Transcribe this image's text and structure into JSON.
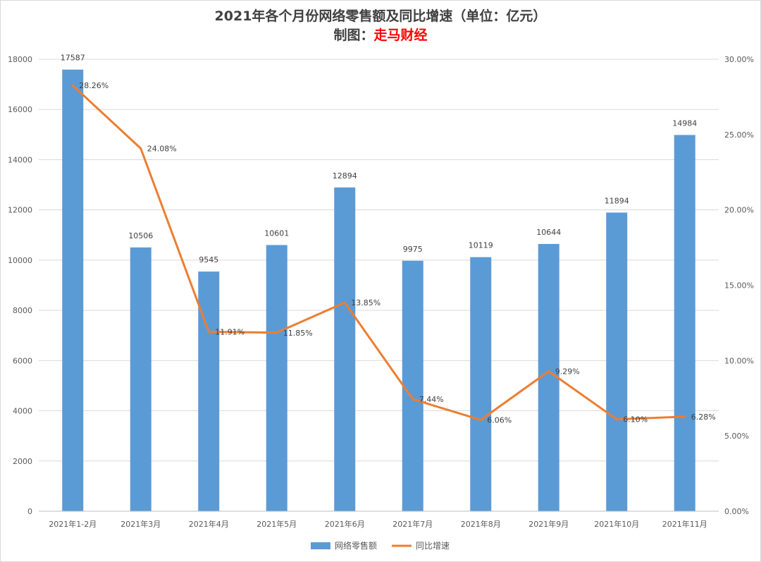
{
  "chart_data": {
    "type": "bar+line",
    "title": "2021年各个月份网络零售额及同比增速（单位：亿元）",
    "subtitle_prefix": "制图：",
    "subtitle_source": "走马财经",
    "categories": [
      "2021年1-2月",
      "2021年3月",
      "2021年4月",
      "2021年5月",
      "2021年6月",
      "2021年7月",
      "2021年8月",
      "2021年9月",
      "2021年10月",
      "2021年11月"
    ],
    "series": [
      {
        "name": "网络零售额",
        "type": "bar",
        "axis": "left",
        "color": "#5b9bd5",
        "values": [
          17587,
          10506,
          9545,
          10601,
          12894,
          9975,
          10119,
          10644,
          11894,
          14984
        ],
        "labels": [
          "17587",
          "10506",
          "9545",
          "10601",
          "12894",
          "9975",
          "10119",
          "10644",
          "11894",
          "14984"
        ]
      },
      {
        "name": "同比增速",
        "type": "line",
        "axis": "right",
        "color": "#ed7d31",
        "values": [
          28.26,
          24.08,
          11.91,
          11.85,
          13.85,
          7.44,
          6.06,
          9.29,
          6.1,
          6.28
        ],
        "labels": [
          "28.26%",
          "24.08%",
          "11.91%",
          "11.85%",
          "13.85%",
          "7.44%",
          "6.06%",
          "9.29%",
          "6.10%",
          "6.28%"
        ]
      }
    ],
    "y_left": {
      "min": 0,
      "max": 18000,
      "step": 2000,
      "tick_labels": [
        "0",
        "2000",
        "4000",
        "6000",
        "8000",
        "10000",
        "12000",
        "14000",
        "16000",
        "18000"
      ]
    },
    "y_right": {
      "min": 0,
      "max": 30,
      "step": 5,
      "tick_labels": [
        "0.00%",
        "5.00%",
        "10.00%",
        "15.00%",
        "20.00%",
        "25.00%",
        "30.00%"
      ]
    },
    "grid": true,
    "legend": "bottom"
  }
}
